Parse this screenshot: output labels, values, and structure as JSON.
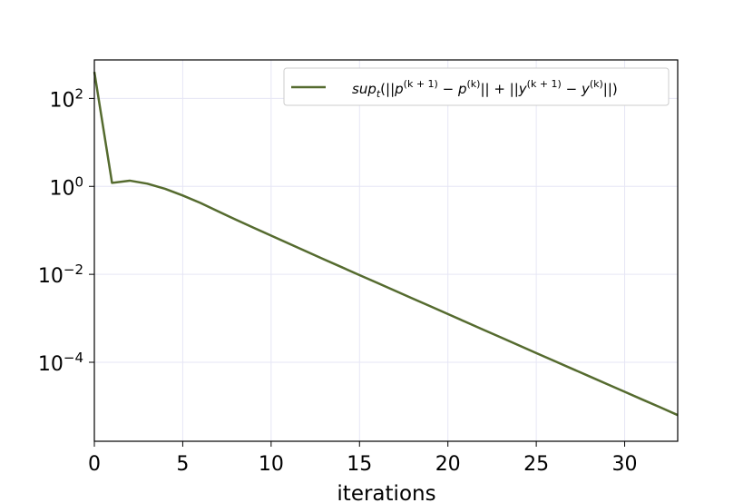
{
  "chart_data": {
    "type": "line",
    "title": "",
    "xlabel": "iterations",
    "ylabel": "",
    "xlim": [
      0,
      33
    ],
    "ylim": [
      1.6e-06,
      750
    ],
    "yscale": "log",
    "grid": true,
    "legend_position": "top-right",
    "x_ticks": [
      {
        "value": 0,
        "label": "0"
      },
      {
        "value": 5,
        "label": "5"
      },
      {
        "value": 10,
        "label": "10"
      },
      {
        "value": 15,
        "label": "15"
      },
      {
        "value": 20,
        "label": "20"
      },
      {
        "value": 25,
        "label": "25"
      },
      {
        "value": 30,
        "label": "30"
      }
    ],
    "y_ticks": [
      {
        "value": 100,
        "base": "10",
        "exp": "2"
      },
      {
        "value": 1,
        "base": "10",
        "exp": "0"
      },
      {
        "value": 0.01,
        "base": "10",
        "exp": "−2"
      },
      {
        "value": 0.0001,
        "base": "10",
        "exp": "−4"
      }
    ],
    "series": [
      {
        "name": "sup_t(||p^(k+1) − p^(k)|| + ||y^(k+1) − y^(k)||)",
        "color": "#556b2f",
        "x": [
          0,
          1,
          2,
          3,
          4,
          5,
          6,
          7,
          8,
          9,
          10,
          11,
          12,
          13,
          14,
          15,
          16,
          17,
          18,
          19,
          20,
          21,
          22,
          23,
          24,
          25,
          26,
          27,
          28,
          29,
          30,
          31,
          32,
          33
        ],
        "y": [
          400,
          1.2,
          1.35,
          1.15,
          0.88,
          0.62,
          0.42,
          0.27,
          0.175,
          0.115,
          0.076,
          0.05,
          0.033,
          0.0218,
          0.0145,
          0.0096,
          0.0064,
          0.00425,
          0.00282,
          0.00188,
          0.00125,
          0.00083,
          0.00055,
          0.000367,
          0.000244,
          0.000162,
          0.000108,
          7.2e-05,
          4.8e-05,
          3.2e-05,
          2.13e-05,
          1.42e-05,
          9.5e-06,
          6.3e-06
        ]
      }
    ]
  }
}
